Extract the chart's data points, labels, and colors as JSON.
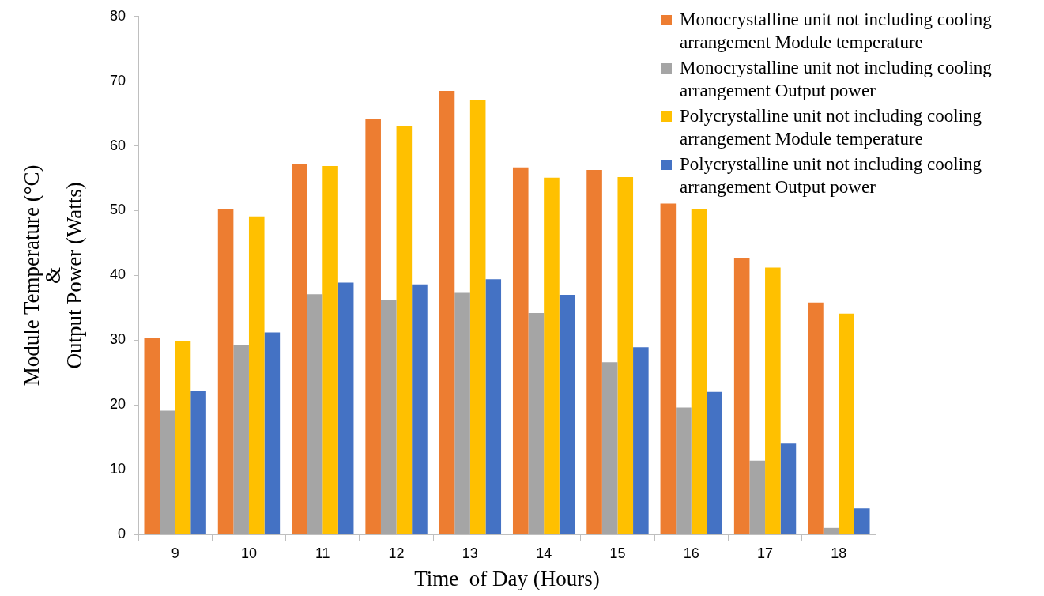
{
  "chart_data": {
    "type": "bar",
    "xlabel": "Time  of Day (Hours)",
    "ylabel": "Module Temperature (°C)\n&\nOutput Power (Watts)",
    "categories": [
      "9",
      "10",
      "11",
      "12",
      "13",
      "14",
      "15",
      "16",
      "17",
      "18"
    ],
    "series": [
      {
        "name": "Monocrystalline unit not including cooling arrangement Module temperature",
        "color": "#ed7d31",
        "values": [
          30.3,
          50.2,
          57.2,
          64.2,
          68.5,
          56.7,
          56.3,
          51.1,
          42.7,
          35.8
        ]
      },
      {
        "name": "Monocrystalline unit not including cooling arrangement Output power",
        "color": "#a5a5a5",
        "values": [
          19.1,
          29.2,
          37.1,
          36.2,
          37.3,
          34.2,
          26.6,
          19.6,
          11.4,
          1.0
        ]
      },
      {
        "name": "Polycrystalline unit not including cooling arrangement Module temperature",
        "color": "#ffc000",
        "values": [
          29.9,
          49.1,
          56.9,
          63.1,
          67.1,
          55.1,
          55.2,
          50.3,
          41.2,
          34.1
        ]
      },
      {
        "name": "Polycrystalline unit not including cooling arrangement Output power",
        "color": "#4472c4",
        "values": [
          22.1,
          31.2,
          38.9,
          38.6,
          39.4,
          37.0,
          28.9,
          22.0,
          14.0,
          4.0
        ]
      }
    ],
    "ylim": [
      0,
      80
    ],
    "yticks": [
      0,
      10,
      20,
      30,
      40,
      50,
      60,
      70,
      80
    ],
    "legend": "top right"
  }
}
